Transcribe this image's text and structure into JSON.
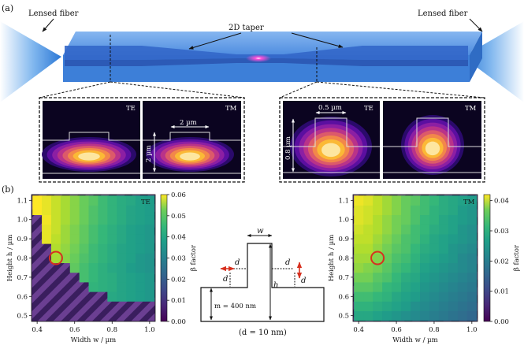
{
  "panel_a": {
    "label": "(a)",
    "left_fiber": "Lensed fiber",
    "right_fiber": "Lensed fiber",
    "taper": "2D taper",
    "left_modes": {
      "te": "TE",
      "tm": "TM",
      "width_label": "2 µm",
      "height_label": "2 µm"
    },
    "right_modes": {
      "te": "TE",
      "tm": "TM",
      "width_label": "0.5 µm",
      "height_label": "0.8 µm"
    }
  },
  "panel_b": {
    "label": "(b)"
  },
  "schematic": {
    "w": "w",
    "h": "h",
    "d": "d",
    "m": "m = 400 nm",
    "note": "(d = 10 nm)"
  },
  "chart_data": [
    {
      "type": "heatmap",
      "title": "TE",
      "xlabel": "Width w / µm",
      "ylabel": "Height h / µm",
      "colorbar_label": "β factor",
      "x_ticks": [
        "0.4",
        "0.6",
        "0.8",
        "1.0"
      ],
      "y_ticks": [
        "0.5",
        "0.6",
        "0.7",
        "0.8",
        "0.9",
        "1.0",
        "1.1"
      ],
      "colorbar_ticks": [
        "0.00",
        "0.01",
        "0.02",
        "0.03",
        "0.04",
        "0.05",
        "0.06"
      ],
      "xlim": [
        0.37,
        1.03
      ],
      "ylim": [
        0.47,
        1.13
      ],
      "vmax": 0.06,
      "x": [
        0.4,
        0.45,
        0.5,
        0.55,
        0.6,
        0.65,
        0.7,
        0.75,
        0.8,
        0.85,
        0.9,
        0.95,
        1.0
      ],
      "y": [
        0.5,
        0.55,
        0.6,
        0.65,
        0.7,
        0.75,
        0.8,
        0.85,
        0.9,
        0.95,
        1.0,
        1.05,
        1.1
      ],
      "z": [
        [
          null,
          null,
          null,
          null,
          null,
          null,
          null,
          null,
          null,
          null,
          null,
          null,
          null
        ],
        [
          null,
          null,
          null,
          null,
          null,
          null,
          null,
          null,
          null,
          null,
          null,
          null,
          null
        ],
        [
          null,
          null,
          null,
          null,
          null,
          null,
          null,
          null,
          0.036,
          0.035,
          0.034,
          0.033,
          0.032
        ],
        [
          null,
          null,
          null,
          null,
          null,
          null,
          0.039,
          0.038,
          0.037,
          0.035,
          0.034,
          0.033,
          0.032
        ],
        [
          null,
          null,
          null,
          null,
          null,
          0.042,
          0.04,
          0.038,
          0.037,
          0.035,
          0.034,
          0.033,
          0.032
        ],
        [
          null,
          null,
          null,
          null,
          0.045,
          0.042,
          0.04,
          0.038,
          0.036,
          0.035,
          0.033,
          0.032,
          0.031
        ],
        [
          null,
          null,
          0.052,
          0.049,
          0.046,
          0.043,
          0.041,
          0.039,
          0.037,
          0.035,
          0.034,
          0.032,
          0.031
        ],
        [
          null,
          null,
          0.053,
          0.05,
          0.047,
          0.044,
          0.041,
          0.039,
          0.037,
          0.035,
          0.034,
          0.033,
          0.032
        ],
        [
          null,
          0.058,
          0.054,
          0.051,
          0.048,
          0.045,
          0.042,
          0.04,
          0.038,
          0.036,
          0.034,
          0.033,
          0.032
        ],
        [
          null,
          0.058,
          0.055,
          0.051,
          0.048,
          0.045,
          0.042,
          0.04,
          0.038,
          0.036,
          0.034,
          0.033,
          0.032
        ],
        [
          null,
          0.059,
          0.055,
          0.052,
          0.049,
          0.046,
          0.043,
          0.041,
          0.039,
          0.037,
          0.035,
          0.034,
          0.033
        ],
        [
          0.06,
          0.058,
          0.055,
          0.052,
          0.049,
          0.046,
          0.043,
          0.041,
          0.039,
          0.037,
          0.035,
          0.034,
          0.033
        ],
        [
          0.06,
          0.058,
          0.055,
          0.052,
          0.049,
          0.046,
          0.044,
          0.041,
          0.039,
          0.037,
          0.036,
          0.034,
          0.033
        ]
      ],
      "marker": {
        "x": 0.5,
        "y": 0.8
      }
    },
    {
      "type": "heatmap",
      "title": "TM",
      "xlabel": "Width w / µm",
      "ylabel": "Height h / µm",
      "colorbar_label": "β factor",
      "x_ticks": [
        "0.4",
        "0.6",
        "0.8",
        "1.0"
      ],
      "y_ticks": [
        "0.5",
        "0.6",
        "0.7",
        "0.8",
        "0.9",
        "1.0",
        "1.1"
      ],
      "colorbar_ticks": [
        "0.00",
        "0.01",
        "0.02",
        "0.03",
        "0.04"
      ],
      "xlim": [
        0.37,
        1.03
      ],
      "ylim": [
        0.47,
        1.13
      ],
      "vmax": 0.042,
      "x": [
        0.4,
        0.45,
        0.5,
        0.55,
        0.6,
        0.65,
        0.7,
        0.75,
        0.8,
        0.85,
        0.9,
        0.95,
        1.0
      ],
      "y": [
        0.5,
        0.55,
        0.6,
        0.65,
        0.7,
        0.75,
        0.8,
        0.85,
        0.9,
        0.95,
        1.0,
        1.05,
        1.1
      ],
      "z": [
        [
          0.025,
          0.025,
          0.024,
          0.023,
          0.022,
          0.021,
          0.02,
          0.019,
          0.018,
          0.017,
          0.016,
          0.015,
          0.014
        ],
        [
          0.027,
          0.027,
          0.026,
          0.025,
          0.024,
          0.023,
          0.021,
          0.02,
          0.019,
          0.018,
          0.017,
          0.016,
          0.015
        ],
        [
          0.029,
          0.029,
          0.028,
          0.027,
          0.025,
          0.024,
          0.023,
          0.021,
          0.02,
          0.019,
          0.018,
          0.017,
          0.016
        ],
        [
          0.031,
          0.031,
          0.03,
          0.028,
          0.027,
          0.025,
          0.024,
          0.022,
          0.021,
          0.02,
          0.019,
          0.018,
          0.017
        ],
        [
          0.033,
          0.033,
          0.031,
          0.03,
          0.028,
          0.026,
          0.025,
          0.023,
          0.022,
          0.021,
          0.02,
          0.019,
          0.018
        ],
        [
          0.035,
          0.034,
          0.033,
          0.031,
          0.029,
          0.028,
          0.026,
          0.024,
          0.023,
          0.022,
          0.021,
          0.02,
          0.019
        ],
        [
          0.036,
          0.036,
          0.034,
          0.032,
          0.03,
          0.029,
          0.027,
          0.025,
          0.024,
          0.023,
          0.022,
          0.02,
          0.019
        ],
        [
          0.037,
          0.037,
          0.035,
          0.033,
          0.031,
          0.03,
          0.028,
          0.026,
          0.025,
          0.024,
          0.022,
          0.021,
          0.02
        ],
        [
          0.038,
          0.038,
          0.036,
          0.034,
          0.032,
          0.03,
          0.029,
          0.027,
          0.025,
          0.024,
          0.023,
          0.022,
          0.021
        ],
        [
          0.039,
          0.038,
          0.037,
          0.035,
          0.033,
          0.031,
          0.029,
          0.028,
          0.026,
          0.025,
          0.024,
          0.022,
          0.021
        ],
        [
          0.04,
          0.039,
          0.037,
          0.035,
          0.033,
          0.032,
          0.03,
          0.028,
          0.027,
          0.025,
          0.024,
          0.023,
          0.022
        ],
        [
          0.04,
          0.039,
          0.038,
          0.036,
          0.034,
          0.032,
          0.03,
          0.029,
          0.027,
          0.026,
          0.025,
          0.023,
          0.022
        ],
        [
          0.041,
          0.04,
          0.038,
          0.036,
          0.034,
          0.032,
          0.031,
          0.029,
          0.028,
          0.026,
          0.025,
          0.024,
          0.023
        ]
      ],
      "marker": {
        "x": 0.5,
        "y": 0.8
      }
    }
  ]
}
